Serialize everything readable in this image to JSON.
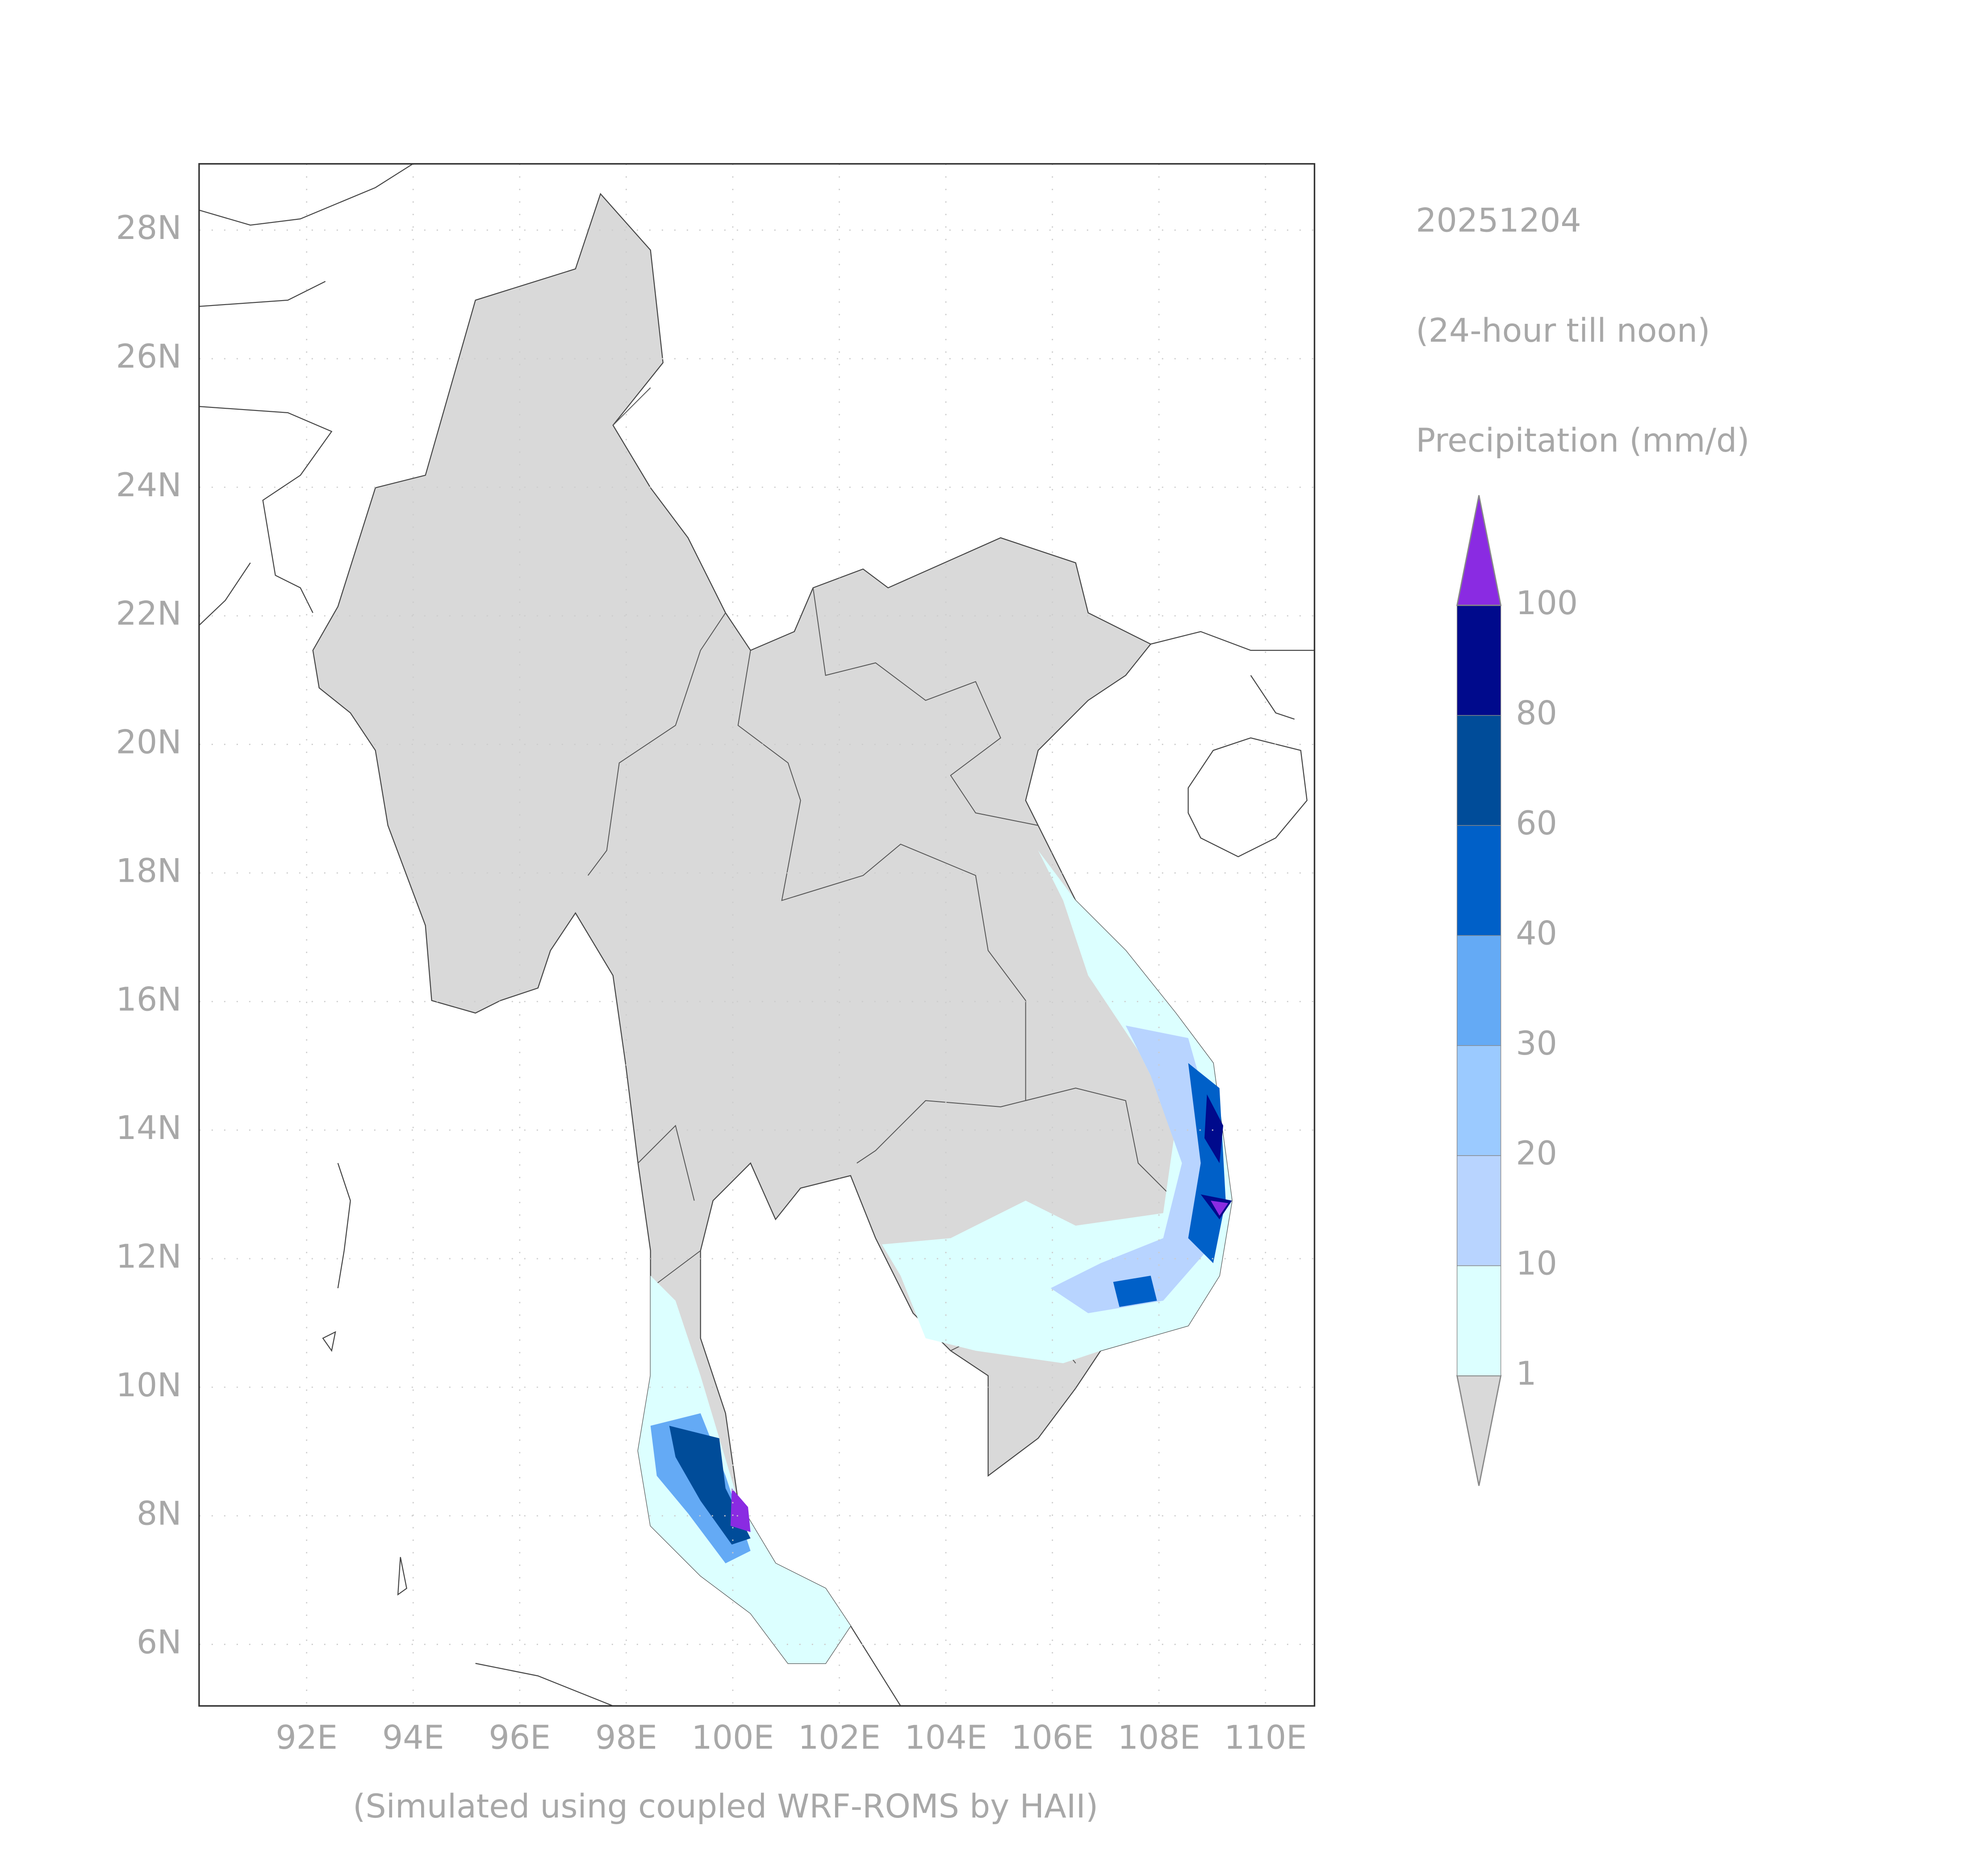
{
  "map": {
    "date": "20251204",
    "period": "(24-hour till noon)",
    "variable": "Precipitation (mm/d)",
    "footer": "(Simulated using coupled WRF-ROMS by HAII)",
    "lat_ticks": [
      "28N",
      "26N",
      "24N",
      "22N",
      "20N",
      "18N",
      "16N",
      "14N",
      "12N",
      "10N",
      "8N",
      "6N"
    ],
    "lon_ticks": [
      "92E",
      "94E",
      "96E",
      "98E",
      "100E",
      "102E",
      "104E",
      "106E",
      "108E",
      "110E"
    ],
    "colorbar": {
      "levels": [
        1,
        10,
        20,
        30,
        40,
        60,
        80,
        100
      ],
      "colors": [
        "#d9d9d9",
        "#dcffff",
        "#b8d4ff",
        "#9bcaff",
        "#64aaf5",
        "#0060c8",
        "#004c99",
        "#000a8c",
        "#8a2be2"
      ]
    }
  }
}
